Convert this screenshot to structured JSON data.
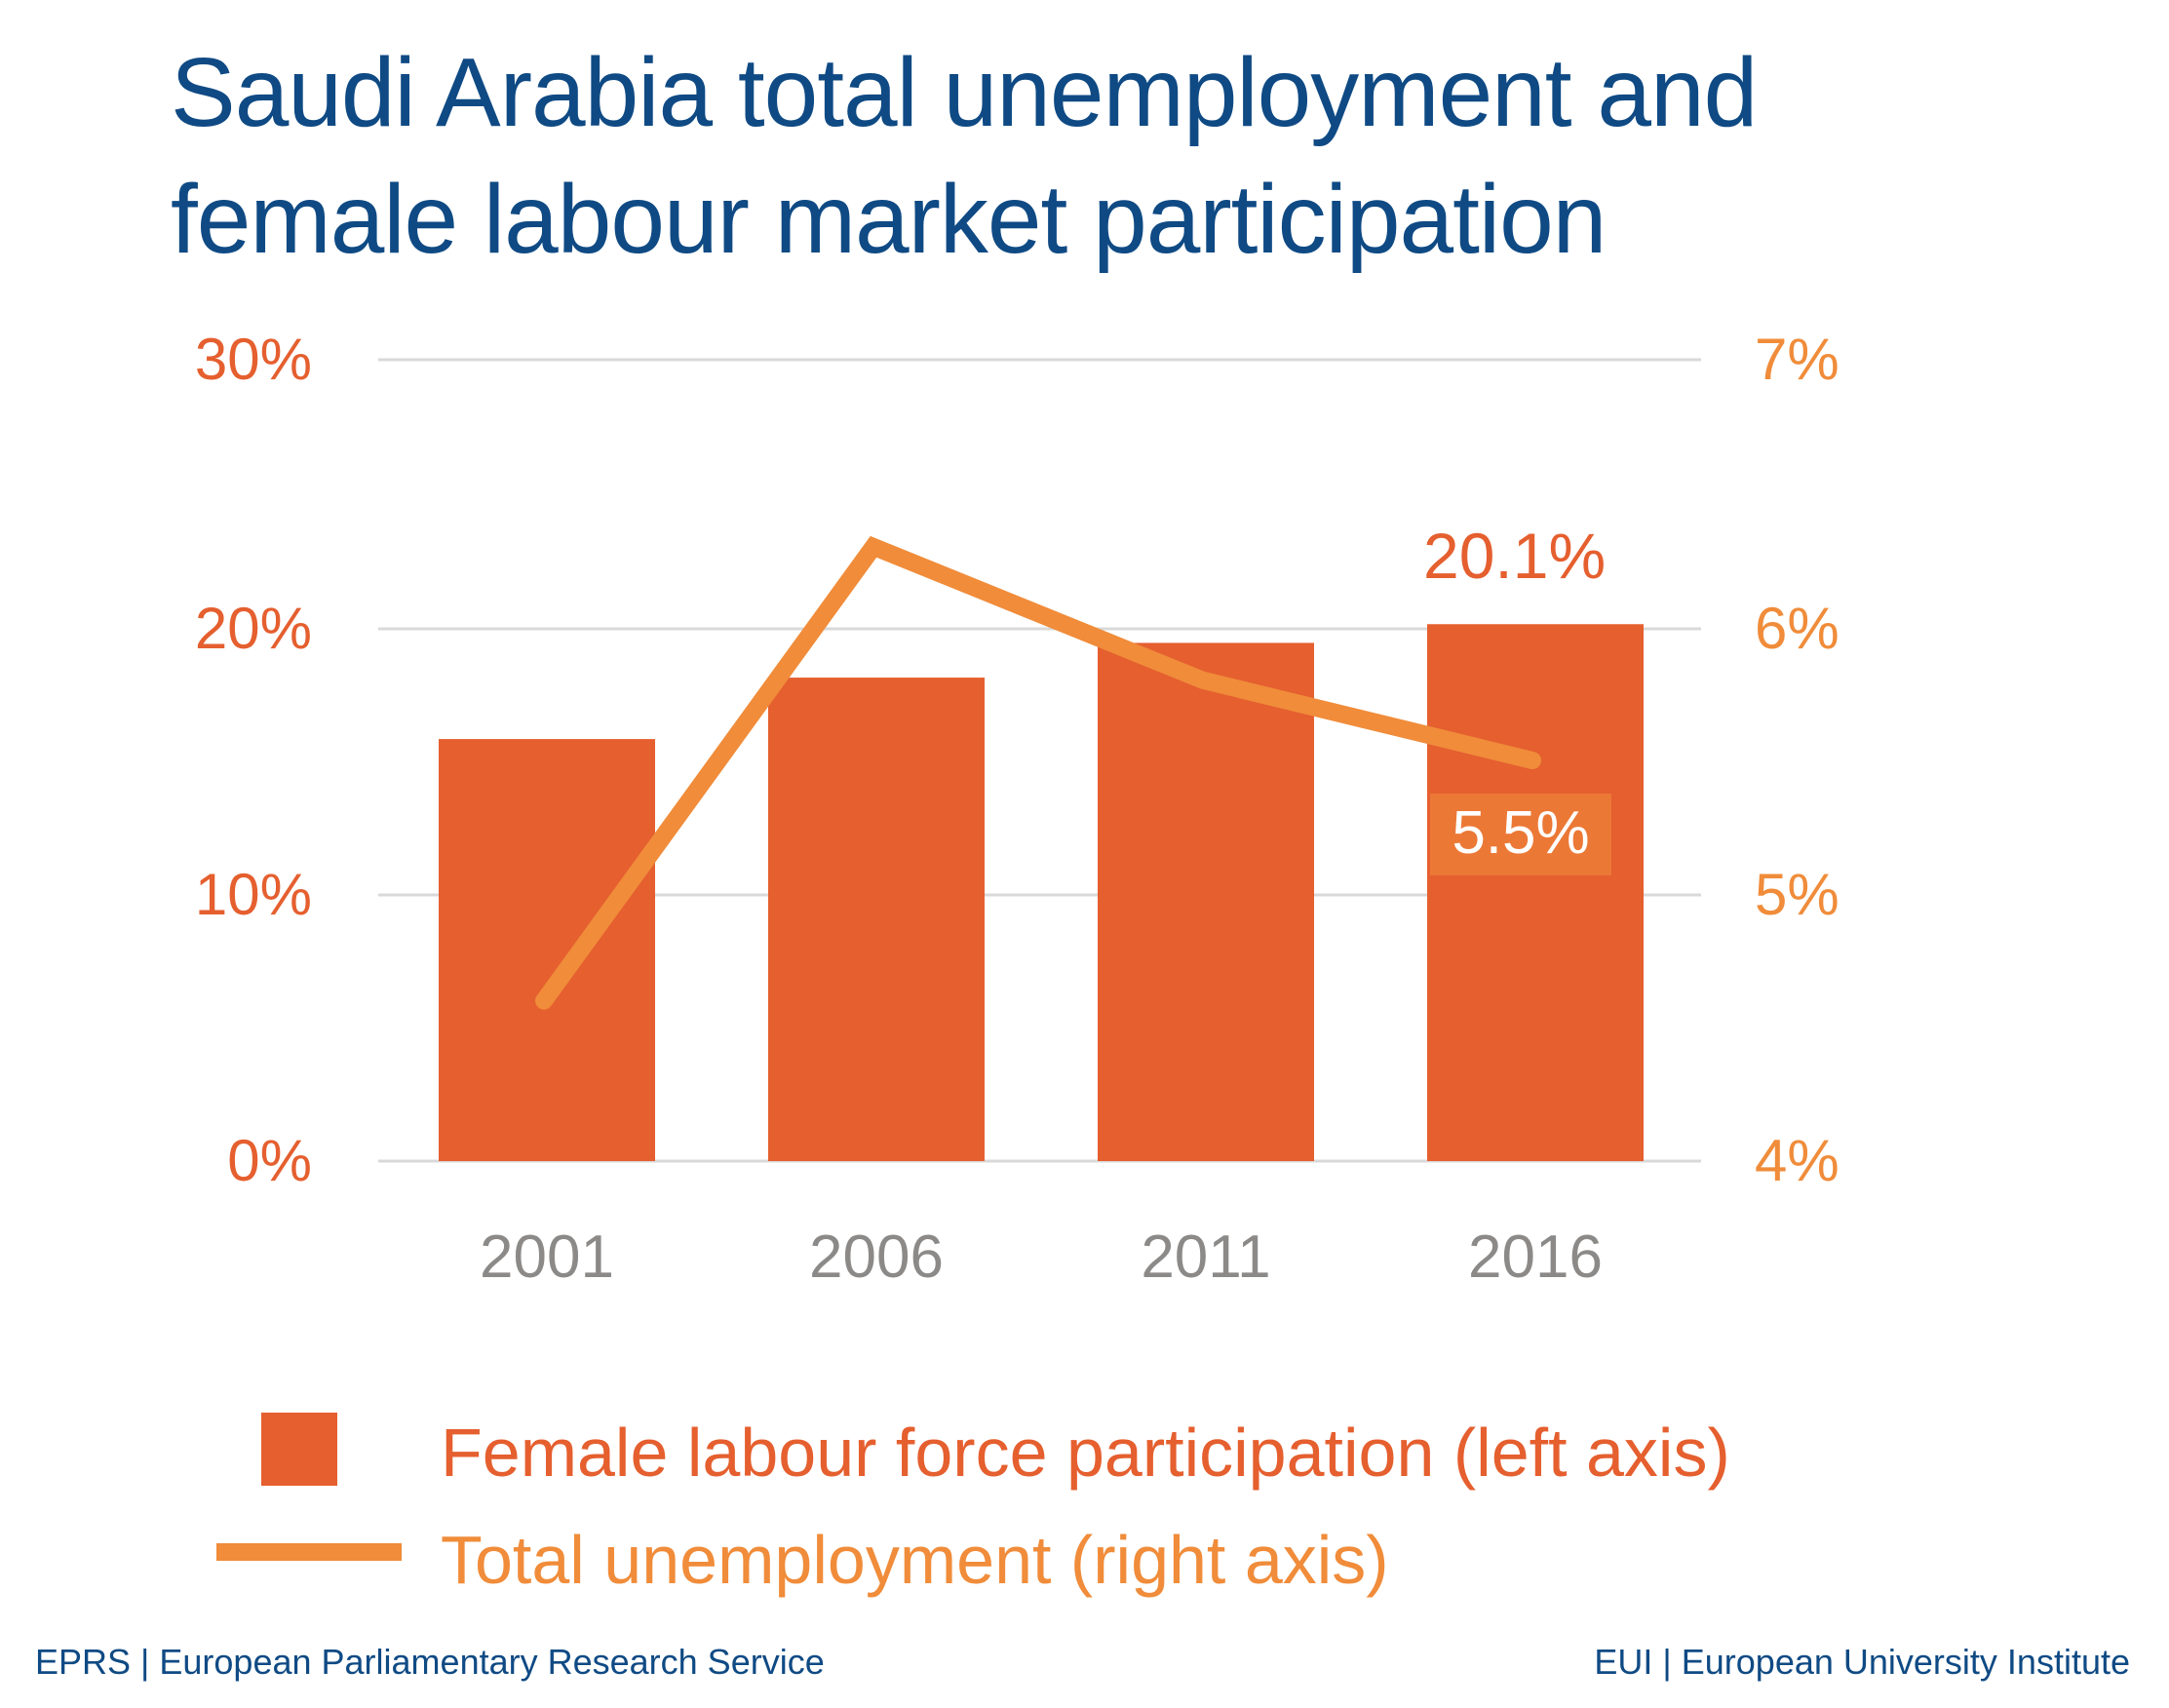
{
  "title": "Saudi Arabia total unemployment and female labour market participation",
  "title_lines": [
    "Saudi Arabia total unemployment and",
    "female labour market participation"
  ],
  "colors": {
    "title": "#0f4a84",
    "bars": "#e55f2f",
    "line": "#f08c3a",
    "line_label_bg": "#ec7836",
    "grid": "#d9d9d9",
    "xtick": "#8c8a88",
    "footer": "#0f4a84"
  },
  "axes": {
    "left": {
      "ticks": [
        "0%",
        "10%",
        "20%",
        "30%"
      ],
      "range": [
        0,
        30
      ]
    },
    "right": {
      "ticks": [
        "4%",
        "5%",
        "6%",
        "7%"
      ],
      "range": [
        4,
        7
      ]
    },
    "x": {
      "ticks": [
        "2001",
        "2006",
        "2011",
        "2016"
      ]
    }
  },
  "annotations": {
    "bar_last": "20.1%",
    "line_last": "5.5%"
  },
  "legend": {
    "bar": "Female labour force participation (left axis)",
    "line": "Total unemployment (right axis)"
  },
  "footer": {
    "left": "EPRS | European Parliamentary Research Service",
    "right": "EUI | European University Institute"
  },
  "chart_data": {
    "type": "bar",
    "title": "Saudi Arabia total unemployment and female labour market participation",
    "categories": [
      "2001",
      "2006",
      "2011",
      "2016"
    ],
    "series": [
      {
        "name": "Female labour force participation (left axis)",
        "type": "bar",
        "axis": "left",
        "values": [
          15.8,
          18.1,
          19.4,
          20.1
        ],
        "unit": "%"
      },
      {
        "name": "Total unemployment (right axis)",
        "type": "line",
        "axis": "right",
        "values": [
          4.6,
          6.3,
          5.8,
          5.5
        ],
        "unit": "%"
      }
    ],
    "ylim_left": [
      0,
      30
    ],
    "ylim_right": [
      4,
      7
    ],
    "grid": true,
    "legend_position": "bottom",
    "annotations": [
      {
        "text": "20.1%",
        "series": "Female labour force participation (left axis)",
        "category": "2016"
      },
      {
        "text": "5.5%",
        "series": "Total unemployment (right axis)",
        "category": "2016"
      }
    ]
  }
}
